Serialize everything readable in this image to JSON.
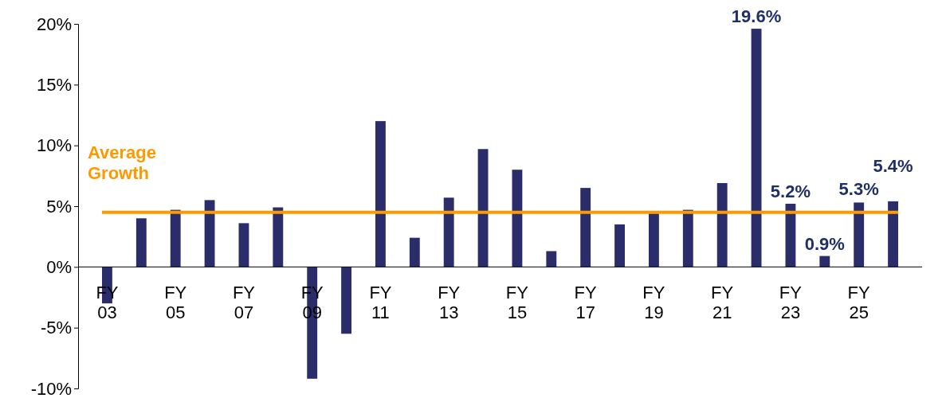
{
  "chart_data": {
    "type": "bar",
    "categories": [
      "FY 03",
      null,
      "FY 05",
      null,
      "FY 07",
      null,
      "FY 09",
      null,
      "FY 11",
      null,
      "FY 13",
      null,
      "FY 15",
      null,
      "FY 17",
      null,
      "FY 19",
      null,
      "FY 21",
      null,
      "FY 23",
      null,
      "FY 25",
      null
    ],
    "values": [
      -3.0,
      4.0,
      4.7,
      5.5,
      3.6,
      4.9,
      -9.2,
      -5.5,
      12.0,
      2.4,
      5.7,
      9.7,
      8.0,
      1.3,
      6.5,
      3.5,
      4.4,
      4.7,
      6.9,
      19.6,
      5.2,
      0.9,
      5.3,
      5.4
    ],
    "value_labels": [
      null,
      null,
      null,
      null,
      null,
      null,
      null,
      null,
      null,
      null,
      null,
      null,
      null,
      null,
      null,
      null,
      null,
      null,
      null,
      "19.6%",
      "5.2%",
      "0.9%",
      "5.3%",
      "5.4%"
    ],
    "color": "#2b2d6b",
    "ylim": [
      -10,
      20
    ],
    "yticks": [
      {
        "value": -10,
        "label": "-10%"
      },
      {
        "value": -5,
        "label": "-5%"
      },
      {
        "value": 0,
        "label": "0%"
      },
      {
        "value": 5,
        "label": "5%"
      },
      {
        "value": 10,
        "label": "10%"
      },
      {
        "value": 15,
        "label": "15%"
      },
      {
        "value": 20,
        "label": "20%"
      }
    ],
    "ref_lines": [
      {
        "axis": "y",
        "value": 4.5,
        "label": "Average Growth",
        "color": "#ff9900"
      }
    ],
    "grid": false
  }
}
